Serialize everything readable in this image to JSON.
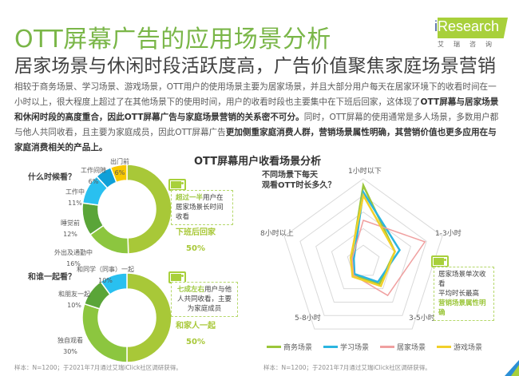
{
  "header": {
    "title": "OTT屏幕广告的应用场景分析",
    "subtitle": "居家场景与休闲时段活跃度高，广告价值聚焦家庭场景营销"
  },
  "logo": {
    "brand_i": "i",
    "brand_rest": "Research",
    "cn": "艾瑞咨询",
    "accent_color": "#a8d03b"
  },
  "paragraph": {
    "p1": "相较于商务场景、学习场景、游戏场景，OTT用户的使用场景主要为居家场景，并且大部分用户每天在居家环境下的收看时间在一小时以上，很大程度上超过了在其他场景下的使用时间，用户的收看时段也主要集中在下班后回家，这体现了",
    "b1": "OTT屏幕与居家场景和休闲时段的高度重合，因此OTT屏幕广告与家庭场景营销的关系密不可分。",
    "p2": "同时，OTT屏幕的使用通常是多人场景，多数用户都与他人共同收看，且主要为家庭成员，因此OTT屏幕广告",
    "b2": "更加侧重家庭消费人群，营销场景属性明确，其营销价值也更多应用在与家庭消费相关的产品上。"
  },
  "chart_title": "OTT屏幕用户收看场景分析",
  "donut1": {
    "question": "什么时候看？",
    "highlight_label": "下班后回家",
    "highlight_value": "50%",
    "callout_hl": "超过一半",
    "callout_text": "用户在居家场景长时间收看",
    "labels": [
      {
        "name": "出门前",
        "value": "6%"
      },
      {
        "name": "工作间隙",
        "value": "6%"
      },
      {
        "name": "工作中",
        "value": "11%"
      },
      {
        "name": "睡觉前",
        "value": "12%"
      },
      {
        "name": "外出及通勤中",
        "value": "16%"
      }
    ]
  },
  "donut2": {
    "question": "和谁一起看？",
    "highlight_label": "和家人一起",
    "highlight_value": "50%",
    "callout_hl": "七成左右",
    "callout_text": "用户与他人共同收看，主要为家庭成员",
    "labels": [
      {
        "name": "和同学（同事）一起",
        "value": "10%"
      },
      {
        "name": "和朋友一起",
        "value": "10%"
      },
      {
        "name": "独自观看",
        "value": "30%"
      }
    ]
  },
  "radar": {
    "question_line1": "不同场景下每天",
    "question_line2": "观看OTT时长多久？",
    "axes": [
      "1小时以下",
      "1-3小时",
      "3-5小时",
      "5-8小时",
      "8小时以上"
    ],
    "callout_line1": "居家场景单次收看",
    "callout_line2": "平均时长最高",
    "callout_hl": "营销场景属性明确"
  },
  "legend": [
    {
      "name": "商务场景",
      "color": "#9bc63a"
    },
    {
      "name": "学习场景",
      "color": "#2bb5e0"
    },
    {
      "name": "居家场景",
      "color": "#f0a0a0"
    },
    {
      "name": "游戏场景",
      "color": "#f2d02a"
    }
  ],
  "source_left": "样本：N=1200；于2021年7月通过艾瑞iClick社区调研获得。",
  "source_right": "样本：N=1200；于2021年7月通过艾瑞iClick社区调研获得。",
  "chart_data": [
    {
      "type": "pie",
      "title": "什么时候看？",
      "categories": [
        "下班后回家",
        "外出及通勤中",
        "睡觉前",
        "工作中",
        "工作间隙",
        "出门前"
      ],
      "values": [
        50,
        16,
        12,
        11,
        6,
        6
      ],
      "colors": [
        "#a8c838",
        "#8cc63f",
        "#5aa538",
        "#29c0f0",
        "#0fa0d8",
        "#f8c800"
      ],
      "unit": "%",
      "donut": true
    },
    {
      "type": "pie",
      "title": "和谁一起看？",
      "categories": [
        "和家人一起",
        "独自观看",
        "和朋友一起",
        "和同学（同事）一起"
      ],
      "values": [
        50,
        30,
        10,
        10
      ],
      "colors": [
        "#a8c838",
        "#8cc63f",
        "#5aa538",
        "#29c0f0"
      ],
      "unit": "%",
      "donut": true
    },
    {
      "type": "radar",
      "title": "不同场景下每天观看OTT时长多久？",
      "categories": [
        "1小时以下",
        "1-3小时",
        "3-5小时",
        "5-8小时",
        "8小时以上"
      ],
      "series": [
        {
          "name": "商务场景",
          "values": [
            92,
            40,
            33,
            20,
            15
          ]
        },
        {
          "name": "学习场景",
          "values": [
            84,
            46,
            30,
            18,
            12
          ]
        },
        {
          "name": "居家场景",
          "values": [
            50,
            78,
            50,
            20,
            14
          ]
        },
        {
          "name": "游戏场景",
          "values": [
            80,
            40,
            36,
            22,
            16
          ]
        }
      ],
      "range": [
        0,
        100
      ],
      "rings": 5,
      "legend_position": "bottom"
    }
  ]
}
